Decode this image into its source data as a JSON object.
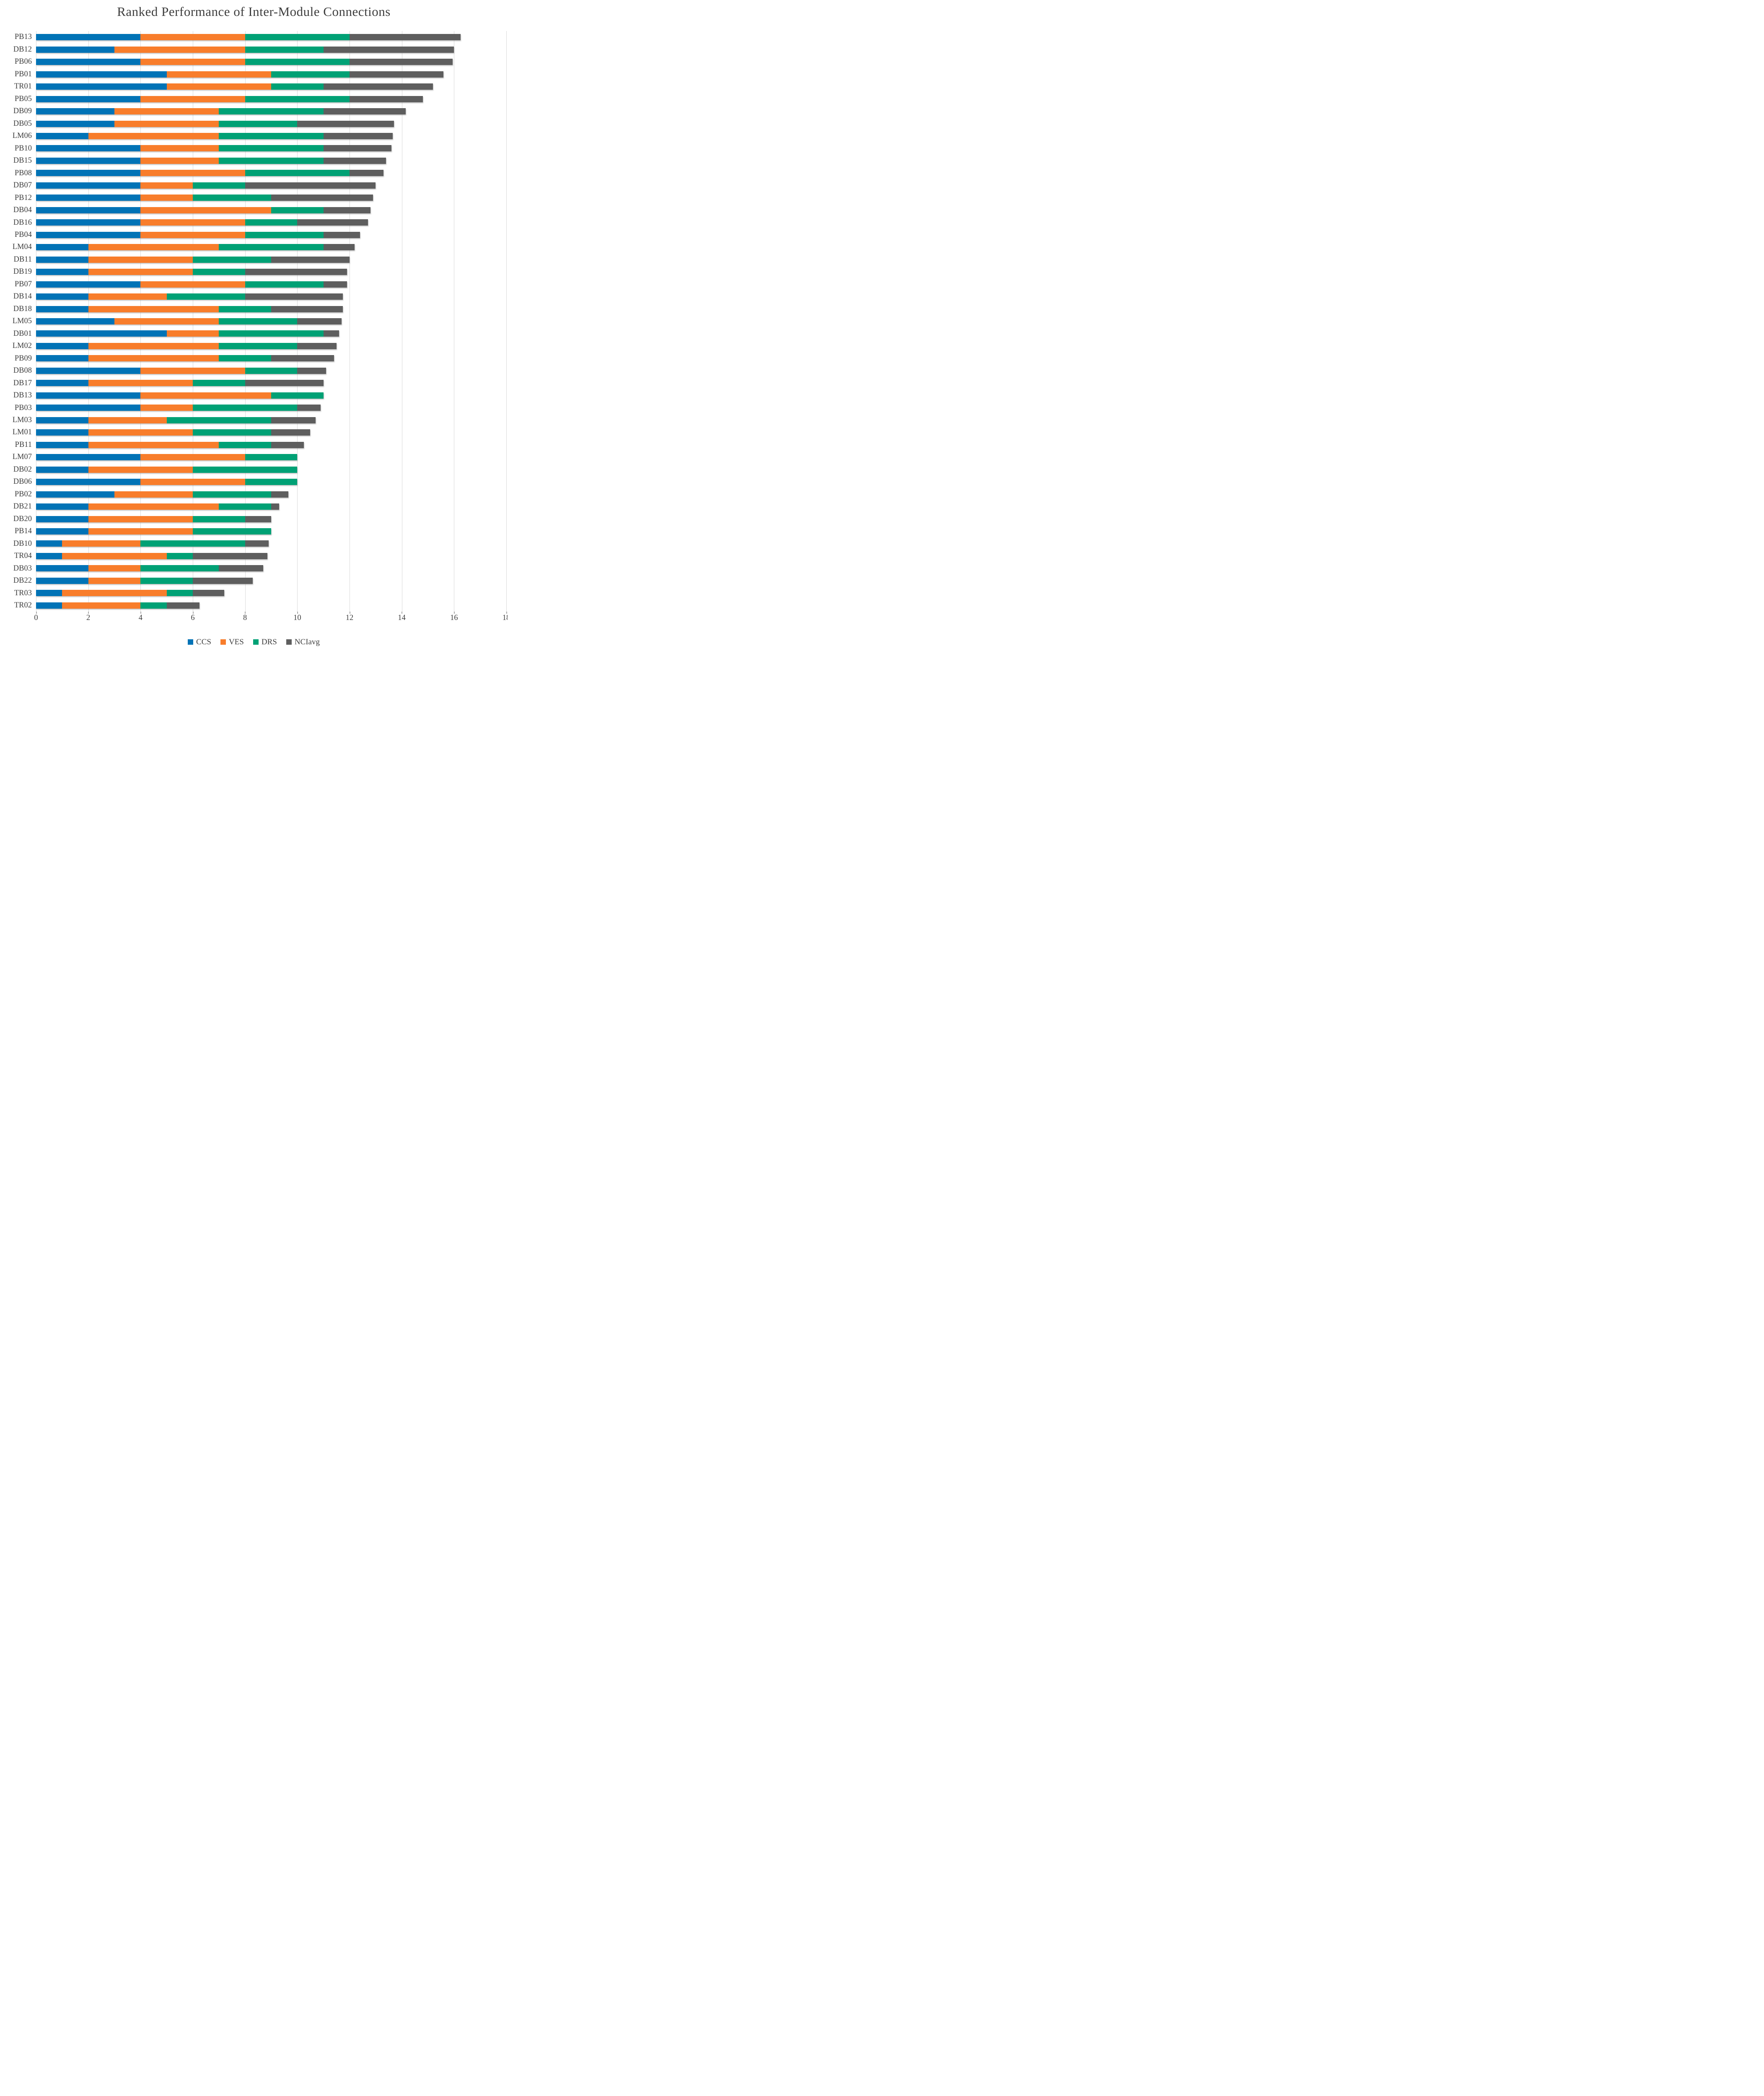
{
  "title": "Ranked Performance of Inter-Module Connections",
  "colors": {
    "ccs": "#0173b6",
    "ves": "#f87d2b",
    "drs": "#00a175",
    "nciavg": "#5e5e5e",
    "gridline": "#d9d9d9",
    "text": "#3f3f3f"
  },
  "chart_data": {
    "type": "bar",
    "orientation": "horizontal",
    "stacked": true,
    "title": "Ranked Performance of Inter-Module Connections",
    "xlabel": "",
    "ylabel": "",
    "xlim": [
      0,
      18
    ],
    "xticks": [
      0,
      2,
      4,
      6,
      8,
      10,
      12,
      14,
      16,
      18
    ],
    "grid": "vertical",
    "legend_position": "bottom",
    "categories": [
      "PB13",
      "DB12",
      "PB06",
      "PB01",
      "TR01",
      "PB05",
      "DB09",
      "DB05",
      "LM06",
      "PB10",
      "DB15",
      "PB08",
      "DB07",
      "PB12",
      "DB04",
      "DB16",
      "PB04",
      "LM04",
      "DB11",
      "DB19",
      "PB07",
      "DB14",
      "DB18",
      "LM05",
      "DB01",
      "LM02",
      "PB09",
      "DB08",
      "DB17",
      "DB13",
      "PB03",
      "LM03",
      "LM01",
      "PB11",
      "LM07",
      "DB02",
      "DB06",
      "PB02",
      "DB21",
      "DB20",
      "PB14",
      "DB10",
      "TR04",
      "DB03",
      "DB22",
      "TR03",
      "TR02"
    ],
    "series": [
      {
        "name": "CCS",
        "color": "#0173b6",
        "values": [
          4,
          3,
          4,
          5,
          5,
          4,
          3,
          3,
          2,
          4,
          4,
          4,
          4,
          4,
          4,
          4,
          4,
          2,
          2,
          2,
          4,
          2,
          2,
          3,
          5,
          2,
          2,
          4,
          2,
          4,
          4,
          2,
          2,
          2,
          4,
          2,
          4,
          3,
          2,
          2,
          2,
          1,
          1,
          2,
          2,
          1,
          1
        ]
      },
      {
        "name": "VES",
        "color": "#f87d2b",
        "values": [
          4,
          5,
          4,
          4,
          4,
          4,
          4,
          4,
          5,
          3,
          3,
          4,
          2,
          2,
          5,
          4,
          4,
          5,
          4,
          4,
          4,
          3,
          5,
          4,
          2,
          5,
          5,
          4,
          4,
          5,
          2,
          3,
          4,
          5,
          4,
          4,
          4,
          3,
          5,
          4,
          4,
          3,
          4,
          2,
          2,
          4,
          3
        ]
      },
      {
        "name": "DRS",
        "color": "#00a175",
        "values": [
          4,
          3,
          4,
          3,
          2,
          4,
          4,
          3,
          4,
          4,
          4,
          4,
          2,
          3,
          2,
          2,
          3,
          4,
          3,
          2,
          3,
          3,
          2,
          3,
          4,
          3,
          2,
          2,
          2,
          2,
          4,
          4,
          3,
          2,
          2,
          4,
          2,
          3,
          2,
          2,
          3,
          4,
          1,
          3,
          2,
          1,
          1
        ]
      },
      {
        "name": "NCIavg",
        "color": "#5e5e5e",
        "values": [
          4.25,
          5.0,
          3.95,
          3.6,
          4.2,
          2.8,
          3.15,
          3.7,
          2.65,
          2.6,
          2.4,
          1.3,
          5.0,
          3.9,
          1.8,
          2.7,
          1.4,
          1.2,
          3.0,
          3.9,
          0.9,
          3.75,
          2.75,
          1.7,
          0.6,
          1.5,
          2.4,
          1.1,
          3.0,
          0,
          0.9,
          1.7,
          1.5,
          1.25,
          0,
          0,
          0,
          0.65,
          0.3,
          1.0,
          0,
          0.9,
          2.85,
          1.7,
          2.3,
          1.2,
          1.25
        ]
      }
    ]
  },
  "x_axis": {
    "tick_labels": [
      "0",
      "2",
      "4",
      "6",
      "8",
      "10",
      "12",
      "14",
      "16",
      "18"
    ]
  },
  "legend": {
    "items": [
      {
        "label": "CCS",
        "color": "#0173b6"
      },
      {
        "label": "VES",
        "color": "#f87d2b"
      },
      {
        "label": "DRS",
        "color": "#00a175"
      },
      {
        "label": "NCIavg",
        "color": "#5e5e5e"
      }
    ]
  }
}
